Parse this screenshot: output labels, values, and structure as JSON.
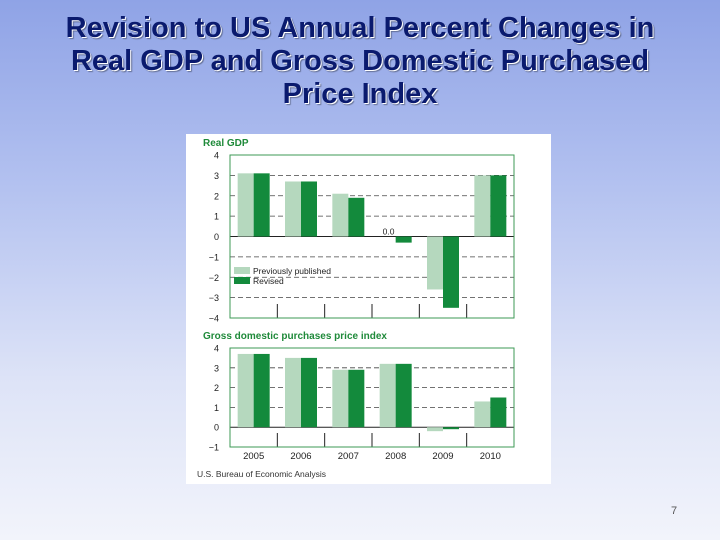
{
  "slide": {
    "title_lines": [
      "Revision to US Annual Percent Changes in",
      "Real GDP and Gross Domestic Purchased",
      "Price Index"
    ],
    "page_number": "7"
  },
  "colors": {
    "previously_published": "#b5d8be",
    "revised": "#138a3c",
    "panel_title": "#1f8a3a",
    "frame": "#3c9a56"
  },
  "source": "U.S. Bureau of Economic Analysis",
  "chart_data": [
    {
      "type": "bar",
      "title": "Real GDP",
      "categories": [
        "2005",
        "2006",
        "2007",
        "2008",
        "2009",
        "2010"
      ],
      "series": [
        {
          "name": "Previously published",
          "values": [
            3.1,
            2.7,
            2.1,
            0.0,
            -2.6,
            3.0
          ]
        },
        {
          "name": "Revised",
          "values": [
            3.1,
            2.7,
            1.9,
            -0.3,
            -3.5,
            3.0
          ]
        }
      ],
      "annotations": [
        {
          "text": "0.0",
          "category": "2008"
        }
      ],
      "ylim": [
        -4,
        4
      ],
      "yticks": [
        "4",
        "3",
        "2",
        "1",
        "0",
        "−1",
        "−2",
        "−3",
        "−4"
      ],
      "legend": [
        "Previously published",
        "Revised"
      ],
      "legend_position": "lower-left",
      "xlabel": "",
      "ylabel": ""
    },
    {
      "type": "bar",
      "title": "Gross domestic purchases price index",
      "categories": [
        "2005",
        "2006",
        "2007",
        "2008",
        "2009",
        "2010"
      ],
      "series": [
        {
          "name": "Previously published",
          "values": [
            3.7,
            3.5,
            2.9,
            3.2,
            -0.2,
            1.3
          ]
        },
        {
          "name": "Revised",
          "values": [
            3.7,
            3.5,
            2.9,
            3.2,
            -0.1,
            1.5
          ]
        }
      ],
      "ylim": [
        -1,
        4
      ],
      "yticks": [
        "4",
        "3",
        "2",
        "1",
        "0",
        "−1"
      ],
      "xlabel": "",
      "ylabel": ""
    }
  ]
}
